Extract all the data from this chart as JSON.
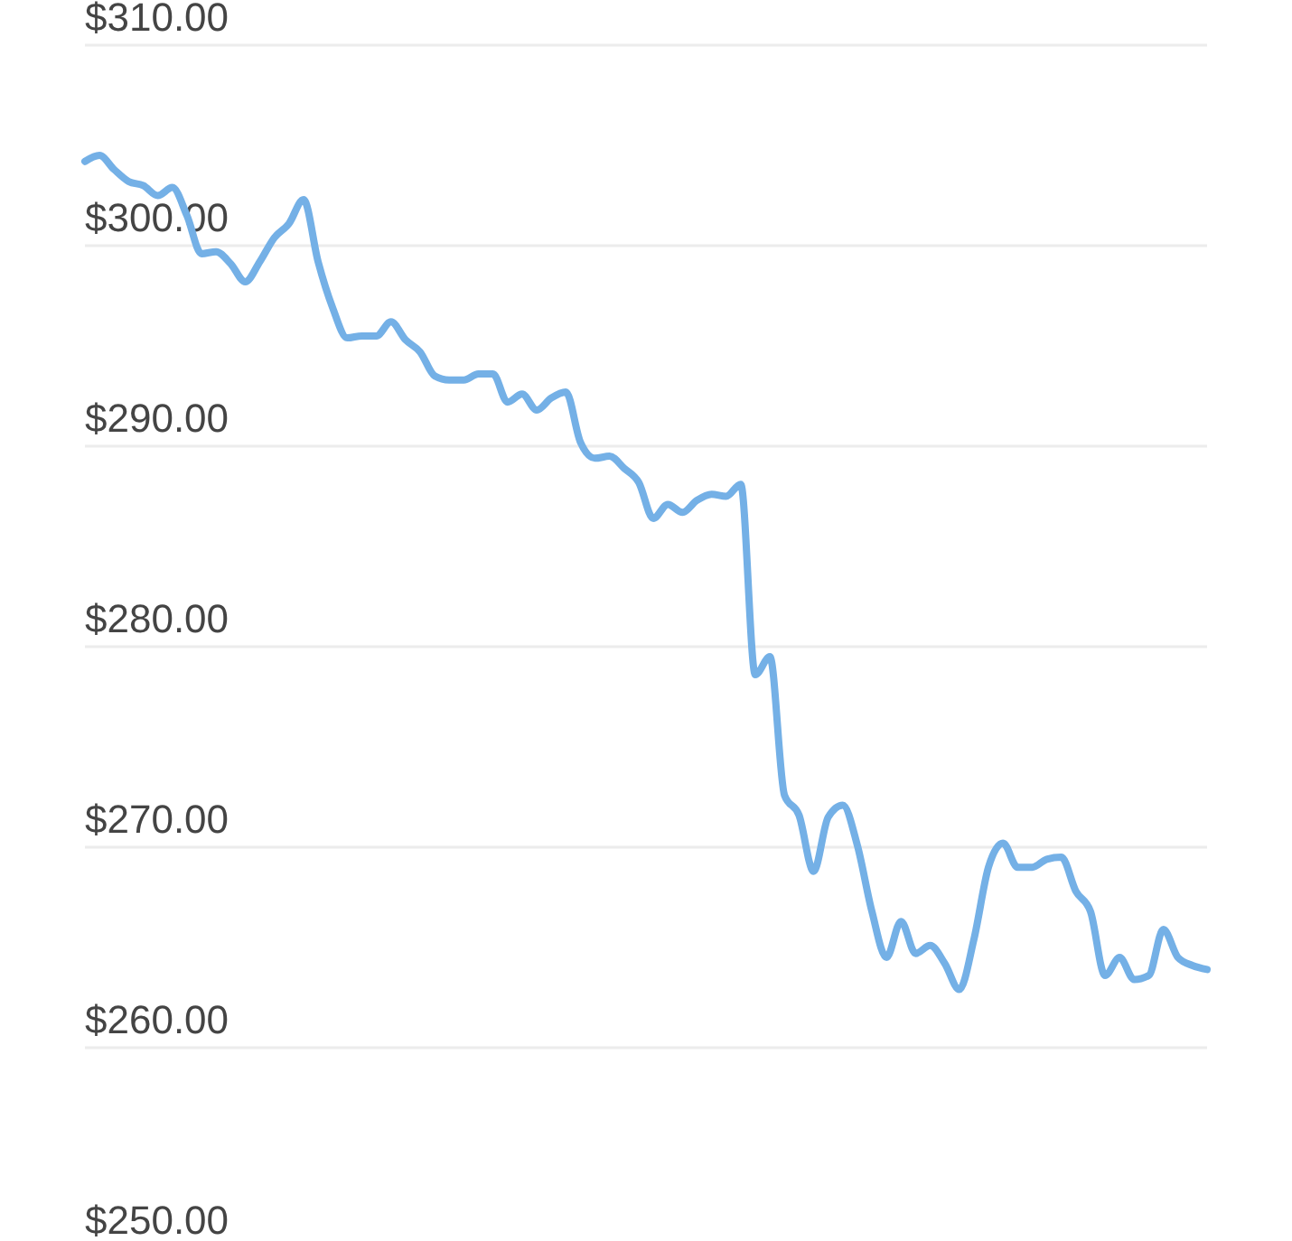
{
  "chart_data": {
    "type": "line",
    "categories": [
      null,
      null,
      null,
      null,
      null,
      null,
      null,
      null,
      null,
      null,
      null,
      null,
      null,
      null,
      null,
      null,
      null,
      null,
      null,
      null,
      null,
      null,
      null,
      null,
      null,
      null,
      null,
      null,
      null,
      null,
      null,
      null,
      null,
      null,
      null,
      null,
      null,
      null,
      null,
      null,
      null,
      null,
      null,
      null,
      null,
      null,
      null,
      null,
      null,
      null,
      null,
      null,
      null,
      null,
      null,
      null,
      null,
      null,
      null,
      null,
      null,
      null,
      null,
      null,
      null,
      null,
      null,
      null,
      null,
      null,
      null,
      null,
      null,
      null,
      null,
      null,
      null,
      null
    ],
    "series": [
      {
        "color": "#74b0e6",
        "values": [
          304.2,
          304.5,
          303.8,
          303.2,
          303.0,
          302.5,
          302.9,
          301.5,
          299.6,
          299.7,
          299.1,
          298.2,
          299.2,
          300.4,
          301.1,
          302.3,
          299.2,
          296.9,
          295.4,
          295.5,
          295.5,
          296.2,
          295.3,
          294.7,
          293.5,
          293.3,
          293.3,
          293.6,
          293.6,
          292.2,
          292.6,
          291.8,
          292.4,
          292.7,
          290.2,
          289.4,
          289.5,
          288.9,
          288.2,
          286.4,
          287.1,
          286.7,
          287.3,
          287.6,
          287.5,
          288.1,
          278.6,
          279.5,
          272.6,
          271.6,
          268.8,
          271.5,
          272.1,
          270.1,
          266.8,
          264.5,
          266.3,
          264.7,
          265.1,
          264.2,
          262.9,
          265.4,
          269.0,
          270.2,
          269.0,
          269.0,
          269.4,
          269.5,
          267.8,
          266.8,
          263.6,
          264.5,
          263.4,
          263.6,
          265.9,
          264.5,
          264.1,
          263.9
        ]
      }
    ],
    "ylim": [
      250,
      310
    ],
    "yticks": [
      {
        "value": 250,
        "label": "$250.00"
      },
      {
        "value": 260,
        "label": "$260.00"
      },
      {
        "value": 270,
        "label": "$270.00"
      },
      {
        "value": 280,
        "label": "$280.00"
      },
      {
        "value": 290,
        "label": "$290.00"
      },
      {
        "value": 300,
        "label": "$300.00"
      },
      {
        "value": 310,
        "label": "$310.00"
      }
    ],
    "grid": true,
    "tick_labels": "y",
    "marker": "none",
    "line_style": "solid"
  }
}
